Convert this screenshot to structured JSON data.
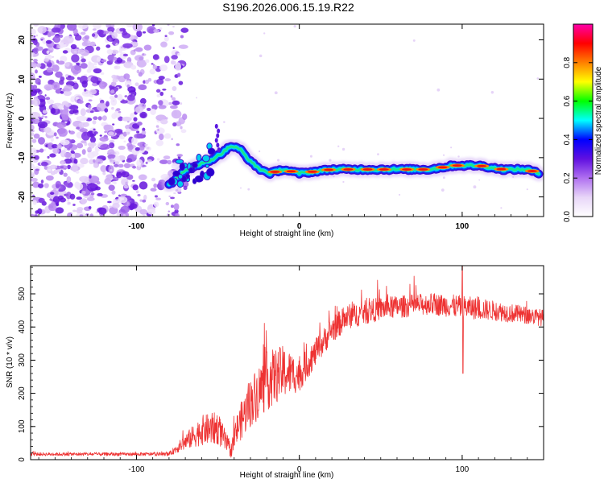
{
  "title": "S196.2026.006.15.19.R22",
  "chart_data": [
    {
      "type": "heatmap",
      "title": "S196.2026.006.15.19.R22",
      "xlabel": "Height of straight line (km)",
      "ylabel": "Frequency (Hz)",
      "xlim": [
        -165,
        150
      ],
      "ylim": [
        -25,
        24
      ],
      "xticks": [
        -100,
        0,
        100
      ],
      "yticks": [
        20,
        10,
        0,
        -10,
        -20
      ],
      "noise_region_x": [
        -165,
        -80
      ],
      "ridge": [
        {
          "x": -80,
          "y": -17
        },
        {
          "x": -72,
          "y": -14
        },
        {
          "x": -64,
          "y": -12
        },
        {
          "x": -56,
          "y": -11
        },
        {
          "x": -48,
          "y": -9
        },
        {
          "x": -42,
          "y": -7
        },
        {
          "x": -36,
          "y": -8
        },
        {
          "x": -30,
          "y": -11
        },
        {
          "x": -24,
          "y": -13
        },
        {
          "x": -18,
          "y": -14
        },
        {
          "x": -10,
          "y": -13
        },
        {
          "x": 0,
          "y": -14
        },
        {
          "x": 20,
          "y": -13
        },
        {
          "x": 40,
          "y": -13
        },
        {
          "x": 60,
          "y": -13
        },
        {
          "x": 80,
          "y": -13
        },
        {
          "x": 95,
          "y": -12
        },
        {
          "x": 110,
          "y": -12
        },
        {
          "x": 125,
          "y": -13
        },
        {
          "x": 140,
          "y": -13
        },
        {
          "x": 147,
          "y": -14
        }
      ],
      "colorbar": {
        "label": "Normalized spectral amplitude",
        "range": [
          0,
          1
        ],
        "ticks": [
          "0.0",
          "0.2",
          "0.4",
          "0.6",
          "0.8"
        ],
        "tick_values": [
          0,
          0.2,
          0.4,
          0.6,
          0.8
        ],
        "colors": [
          "#ffffff",
          "#e8d6f8",
          "#b070f0",
          "#6010e0",
          "#0000ff",
          "#00ffff",
          "#00ff00",
          "#ffff00",
          "#ff8000",
          "#ff0000",
          "#ff00aa"
        ]
      }
    },
    {
      "type": "line",
      "xlabel": "Height of straight line (km)",
      "ylabel": "SNR (10 * v/v)",
      "xlim": [
        -165,
        150
      ],
      "ylim": [
        0,
        585
      ],
      "xticks": [
        -100,
        0,
        100
      ],
      "yticks": [
        0,
        100,
        200,
        300,
        400,
        500
      ],
      "color": "#ee3333",
      "envelope": [
        {
          "x": -165,
          "base": 15,
          "amp": 10
        },
        {
          "x": -80,
          "base": 15,
          "amp": 10
        },
        {
          "x": -72,
          "base": 40,
          "amp": 40
        },
        {
          "x": -60,
          "base": 75,
          "amp": 90
        },
        {
          "x": -50,
          "base": 80,
          "amp": 100
        },
        {
          "x": -42,
          "base": 20,
          "amp": 40
        },
        {
          "x": -38,
          "base": 80,
          "amp": 100
        },
        {
          "x": -30,
          "base": 150,
          "amp": 150
        },
        {
          "x": -20,
          "base": 210,
          "amp": 180
        },
        {
          "x": -10,
          "base": 240,
          "amp": 160
        },
        {
          "x": 0,
          "base": 240,
          "amp": 100
        },
        {
          "x": 10,
          "base": 310,
          "amp": 80
        },
        {
          "x": 20,
          "base": 380,
          "amp": 80
        },
        {
          "x": 30,
          "base": 420,
          "amp": 75
        },
        {
          "x": 50,
          "base": 445,
          "amp": 70
        },
        {
          "x": 80,
          "base": 460,
          "amp": 65
        },
        {
          "x": 100,
          "base": 450,
          "amp": 70
        },
        {
          "x": 120,
          "base": 440,
          "amp": 60
        },
        {
          "x": 150,
          "base": 420,
          "amp": 50
        }
      ],
      "notable": [
        {
          "x": 100,
          "y": 585,
          "label": "peak"
        },
        {
          "x": 100.5,
          "y": 260,
          "label": "dip"
        }
      ]
    }
  ]
}
